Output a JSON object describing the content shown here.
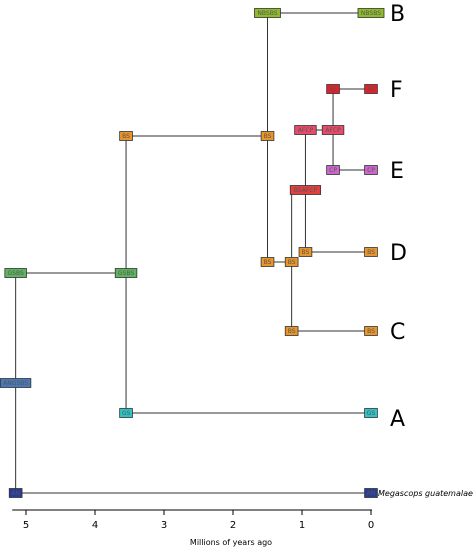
{
  "phylogeny": {
    "colors": {
      "GS": "#2ec4c4",
      "BS": "#e8962c",
      "ANGSBS": "#4a78b8",
      "GSBS": "#5fb55f",
      "NBSBS": "#8dbb2c",
      "AF": "#e0202a",
      "AFCP": "#e84a6a",
      "CP": "#cc66cc",
      "BSAFCP": "#e04040",
      "AN": "#2a3c9a"
    },
    "nodes": [
      {
        "id": "n_ng",
        "label": "NBSBS",
        "age": 1.5,
        "row": 13
      },
      {
        "id": "t_B",
        "label": "NBSBS",
        "age": 0.0,
        "row": 13
      },
      {
        "id": "n_af",
        "label": "AF",
        "age": 0.55,
        "row": 89
      },
      {
        "id": "t_F",
        "label": "AF",
        "age": 0.0,
        "row": 89
      },
      {
        "id": "n_bs_top",
        "label": "BS",
        "age": 3.55,
        "row": 136
      },
      {
        "id": "n_bs_mid",
        "label": "BS",
        "age": 1.5,
        "row": 136
      },
      {
        "id": "n_afcp1",
        "label": "AFCP",
        "age": 0.95,
        "row": 130
      },
      {
        "id": "n_afcp2",
        "label": "AFCP",
        "age": 0.55,
        "row": 130
      },
      {
        "id": "n_cp",
        "label": "CP",
        "age": 0.55,
        "row": 170
      },
      {
        "id": "t_E",
        "label": "CP",
        "age": 0.0,
        "row": 170
      },
      {
        "id": "n_bsafcp",
        "label": "BSAFCP",
        "age": 0.95,
        "row": 190
      },
      {
        "id": "n_bs_d1",
        "label": "BS",
        "age": 1.5,
        "row": 262
      },
      {
        "id": "n_bs_d2",
        "label": "BS",
        "age": 1.15,
        "row": 262
      },
      {
        "id": "n_bs_d3",
        "label": "BS",
        "age": 0.95,
        "row": 252
      },
      {
        "id": "t_D",
        "label": "BS",
        "age": 0.0,
        "row": 252
      },
      {
        "id": "n_bs_c",
        "label": "BS",
        "age": 1.15,
        "row": 331
      },
      {
        "id": "t_C",
        "label": "BS",
        "age": 0.0,
        "row": 331
      },
      {
        "id": "n_gsbs1",
        "label": "GSBS",
        "age": 5.15,
        "row": 273
      },
      {
        "id": "n_gsbs2",
        "label": "GSBS",
        "age": 3.55,
        "row": 273
      },
      {
        "id": "n_angsbs",
        "label": "ANGSBS",
        "age": 5.15,
        "row": 383
      },
      {
        "id": "n_gs",
        "label": "GS",
        "age": 3.55,
        "row": 413
      },
      {
        "id": "t_A",
        "label": "GS",
        "age": 0.0,
        "row": 413
      },
      {
        "id": "n_an",
        "label": "AN",
        "age": 5.15,
        "row": 493
      },
      {
        "id": "t_meg",
        "label": "AN",
        "age": 0.0,
        "row": 493
      }
    ],
    "clade_labels": [
      {
        "id": "B",
        "text": "B",
        "row": 13
      },
      {
        "id": "F",
        "text": "F",
        "row": 89
      },
      {
        "id": "E",
        "text": "E",
        "row": 170
      },
      {
        "id": "D",
        "text": "D",
        "row": 252
      },
      {
        "id": "C",
        "text": "C",
        "row": 331
      },
      {
        "id": "A",
        "text": "A",
        "row": 418
      }
    ],
    "tip_name": "Megascops guatemalae",
    "axis": {
      "ticks": [
        "5",
        "4",
        "3",
        "2",
        "1",
        "0"
      ],
      "tick_values": [
        5,
        4,
        3,
        2,
        1,
        0
      ],
      "label": "Millions of years ago"
    }
  }
}
